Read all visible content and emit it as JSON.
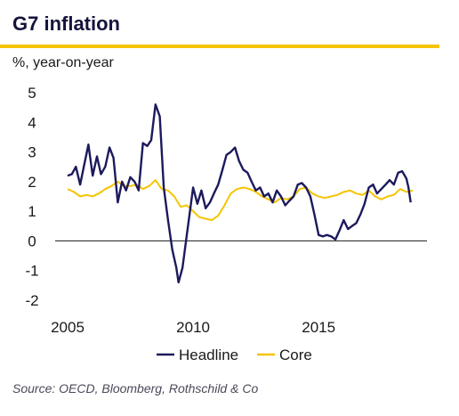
{
  "title": "G7 inflation",
  "subtitle": "%, year-on-year",
  "source": "Source: OECD, Bloomberg, Rothschild & Co",
  "chart_data": {
    "type": "line",
    "title": "G7 inflation",
    "ylabel": "%, year-on-year",
    "xlabel": "",
    "xlim": [
      2005.0,
      2018.75
    ],
    "ylim": [
      -2,
      5
    ],
    "yticks": [
      5,
      4,
      3,
      2,
      1,
      0,
      -1,
      -2
    ],
    "xticks": [
      2005,
      2010,
      2015
    ],
    "grid": false,
    "zero_line": true,
    "legend_position": "bottom",
    "series": [
      {
        "name": "Headline",
        "color": "#1c1a5c",
        "points": [
          [
            2005.0,
            2.2
          ],
          [
            2005.17,
            2.25
          ],
          [
            2005.33,
            2.5
          ],
          [
            2005.5,
            1.9
          ],
          [
            2005.67,
            2.6
          ],
          [
            2005.83,
            3.25
          ],
          [
            2006.0,
            2.2
          ],
          [
            2006.17,
            2.85
          ],
          [
            2006.33,
            2.25
          ],
          [
            2006.5,
            2.5
          ],
          [
            2006.67,
            3.15
          ],
          [
            2006.83,
            2.8
          ],
          [
            2007.0,
            1.3
          ],
          [
            2007.17,
            2.0
          ],
          [
            2007.33,
            1.7
          ],
          [
            2007.5,
            2.15
          ],
          [
            2007.67,
            2.0
          ],
          [
            2007.83,
            1.7
          ],
          [
            2008.0,
            3.3
          ],
          [
            2008.17,
            3.2
          ],
          [
            2008.33,
            3.4
          ],
          [
            2008.5,
            4.6
          ],
          [
            2008.67,
            4.2
          ],
          [
            2008.83,
            1.8
          ],
          [
            2009.0,
            0.7
          ],
          [
            2009.17,
            -0.3
          ],
          [
            2009.33,
            -0.9
          ],
          [
            2009.42,
            -1.4
          ],
          [
            2009.58,
            -0.9
          ],
          [
            2009.75,
            0.2
          ],
          [
            2010.0,
            1.8
          ],
          [
            2010.17,
            1.25
          ],
          [
            2010.33,
            1.7
          ],
          [
            2010.5,
            1.1
          ],
          [
            2010.67,
            1.3
          ],
          [
            2010.83,
            1.6
          ],
          [
            2011.0,
            1.9
          ],
          [
            2011.17,
            2.4
          ],
          [
            2011.33,
            2.9
          ],
          [
            2011.5,
            3.0
          ],
          [
            2011.67,
            3.15
          ],
          [
            2011.83,
            2.7
          ],
          [
            2012.0,
            2.4
          ],
          [
            2012.17,
            2.3
          ],
          [
            2012.33,
            2.0
          ],
          [
            2012.5,
            1.7
          ],
          [
            2012.67,
            1.8
          ],
          [
            2012.83,
            1.5
          ],
          [
            2013.0,
            1.6
          ],
          [
            2013.17,
            1.3
          ],
          [
            2013.33,
            1.7
          ],
          [
            2013.5,
            1.5
          ],
          [
            2013.67,
            1.2
          ],
          [
            2013.83,
            1.35
          ],
          [
            2014.0,
            1.5
          ],
          [
            2014.17,
            1.9
          ],
          [
            2014.33,
            1.95
          ],
          [
            2014.5,
            1.8
          ],
          [
            2014.67,
            1.5
          ],
          [
            2014.83,
            0.9
          ],
          [
            2015.0,
            0.2
          ],
          [
            2015.17,
            0.15
          ],
          [
            2015.33,
            0.2
          ],
          [
            2015.5,
            0.15
          ],
          [
            2015.67,
            0.05
          ],
          [
            2015.83,
            0.35
          ],
          [
            2016.0,
            0.7
          ],
          [
            2016.17,
            0.4
          ],
          [
            2016.33,
            0.5
          ],
          [
            2016.5,
            0.6
          ],
          [
            2016.67,
            0.9
          ],
          [
            2016.83,
            1.25
          ],
          [
            2017.0,
            1.8
          ],
          [
            2017.17,
            1.9
          ],
          [
            2017.33,
            1.6
          ],
          [
            2017.5,
            1.75
          ],
          [
            2017.67,
            1.9
          ],
          [
            2017.83,
            2.05
          ],
          [
            2018.0,
            1.9
          ],
          [
            2018.17,
            2.3
          ],
          [
            2018.33,
            2.35
          ],
          [
            2018.5,
            2.1
          ],
          [
            2018.58,
            1.8
          ],
          [
            2018.67,
            1.3
          ]
        ]
      },
      {
        "name": "Core",
        "color": "#f5c400",
        "points": [
          [
            2005.0,
            1.75
          ],
          [
            2005.25,
            1.65
          ],
          [
            2005.5,
            1.5
          ],
          [
            2005.75,
            1.55
          ],
          [
            2006.0,
            1.5
          ],
          [
            2006.25,
            1.6
          ],
          [
            2006.5,
            1.75
          ],
          [
            2006.75,
            1.85
          ],
          [
            2007.0,
            2.0
          ],
          [
            2007.25,
            1.85
          ],
          [
            2007.5,
            1.85
          ],
          [
            2007.75,
            1.9
          ],
          [
            2008.0,
            1.75
          ],
          [
            2008.25,
            1.85
          ],
          [
            2008.5,
            2.05
          ],
          [
            2008.75,
            1.75
          ],
          [
            2009.0,
            1.7
          ],
          [
            2009.25,
            1.5
          ],
          [
            2009.5,
            1.15
          ],
          [
            2009.75,
            1.2
          ],
          [
            2010.0,
            1.0
          ],
          [
            2010.25,
            0.8
          ],
          [
            2010.5,
            0.75
          ],
          [
            2010.75,
            0.7
          ],
          [
            2011.0,
            0.85
          ],
          [
            2011.25,
            1.2
          ],
          [
            2011.5,
            1.6
          ],
          [
            2011.75,
            1.75
          ],
          [
            2012.0,
            1.8
          ],
          [
            2012.25,
            1.75
          ],
          [
            2012.5,
            1.65
          ],
          [
            2012.75,
            1.5
          ],
          [
            2013.0,
            1.4
          ],
          [
            2013.25,
            1.3
          ],
          [
            2013.5,
            1.45
          ],
          [
            2013.75,
            1.4
          ],
          [
            2014.0,
            1.5
          ],
          [
            2014.25,
            1.75
          ],
          [
            2014.5,
            1.8
          ],
          [
            2014.75,
            1.6
          ],
          [
            2015.0,
            1.5
          ],
          [
            2015.25,
            1.45
          ],
          [
            2015.5,
            1.5
          ],
          [
            2015.75,
            1.55
          ],
          [
            2016.0,
            1.65
          ],
          [
            2016.25,
            1.7
          ],
          [
            2016.5,
            1.6
          ],
          [
            2016.75,
            1.55
          ],
          [
            2017.0,
            1.7
          ],
          [
            2017.25,
            1.5
          ],
          [
            2017.5,
            1.4
          ],
          [
            2017.75,
            1.5
          ],
          [
            2018.0,
            1.55
          ],
          [
            2018.25,
            1.75
          ],
          [
            2018.5,
            1.65
          ],
          [
            2018.75,
            1.7
          ]
        ]
      }
    ]
  }
}
